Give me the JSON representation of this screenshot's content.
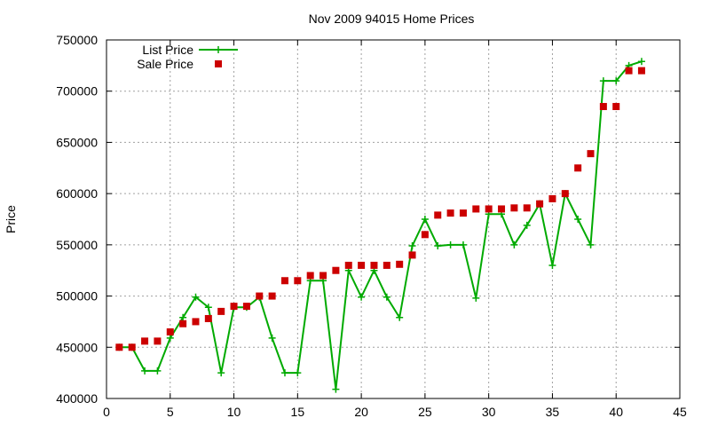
{
  "chart_data": {
    "type": "line",
    "title": "Nov 2009 94015 Home Prices",
    "xlabel": "",
    "ylabel": "Price",
    "xlim": [
      0,
      45
    ],
    "ylim": [
      400000,
      750000
    ],
    "xticks": [
      0,
      5,
      10,
      15,
      20,
      25,
      30,
      35,
      40,
      45
    ],
    "yticks": [
      400000,
      450000,
      500000,
      550000,
      600000,
      650000,
      700000,
      750000
    ],
    "xtick_labels": [
      "0",
      "5",
      "10",
      "15",
      "20",
      "25",
      "30",
      "35",
      "40",
      "45"
    ],
    "ytick_labels": [
      "400000",
      "450000",
      "500000",
      "550000",
      "600000",
      "650000",
      "700000",
      "750000"
    ],
    "grid": true,
    "legend_position": "top-left",
    "series": [
      {
        "name": "List Price",
        "style": "line-with-plus-markers",
        "color": "#00aa00",
        "x": [
          1,
          2,
          3,
          4,
          5,
          6,
          7,
          8,
          9,
          10,
          11,
          12,
          13,
          14,
          15,
          16,
          17,
          18,
          19,
          20,
          21,
          22,
          23,
          24,
          25,
          26,
          27,
          28,
          29,
          30,
          31,
          32,
          33,
          34,
          35,
          36,
          37,
          38,
          39,
          40,
          41,
          42
        ],
        "y": [
          450000,
          450000,
          427000,
          427000,
          459000,
          479000,
          499000,
          489000,
          425000,
          489000,
          489000,
          499000,
          459000,
          425000,
          425000,
          515000,
          515000,
          409000,
          525000,
          499000,
          525000,
          499000,
          479000,
          549000,
          575000,
          549000,
          550000,
          550000,
          498000,
          580000,
          580000,
          550000,
          569000,
          590000,
          530000,
          600000,
          575000,
          550000,
          710000,
          710000,
          725000,
          729000
        ]
      },
      {
        "name": "Sale Price",
        "style": "square-markers",
        "color": "#cc0000",
        "x": [
          1,
          2,
          3,
          4,
          5,
          6,
          7,
          8,
          9,
          10,
          11,
          12,
          13,
          14,
          15,
          16,
          17,
          18,
          19,
          20,
          21,
          22,
          23,
          24,
          25,
          26,
          27,
          28,
          29,
          30,
          31,
          32,
          33,
          34,
          35,
          36,
          37,
          38,
          39,
          40,
          41,
          42
        ],
        "y": [
          450000,
          450000,
          456000,
          456000,
          465000,
          473000,
          475000,
          478000,
          485000,
          490000,
          490000,
          500000,
          500000,
          515000,
          515000,
          520000,
          520000,
          525000,
          530000,
          530000,
          530000,
          530000,
          531000,
          540000,
          560000,
          579000,
          581000,
          581000,
          585000,
          585000,
          585000,
          586000,
          586000,
          590000,
          595000,
          600000,
          625000,
          639000,
          685000,
          685000,
          720000,
          720000
        ]
      }
    ]
  }
}
